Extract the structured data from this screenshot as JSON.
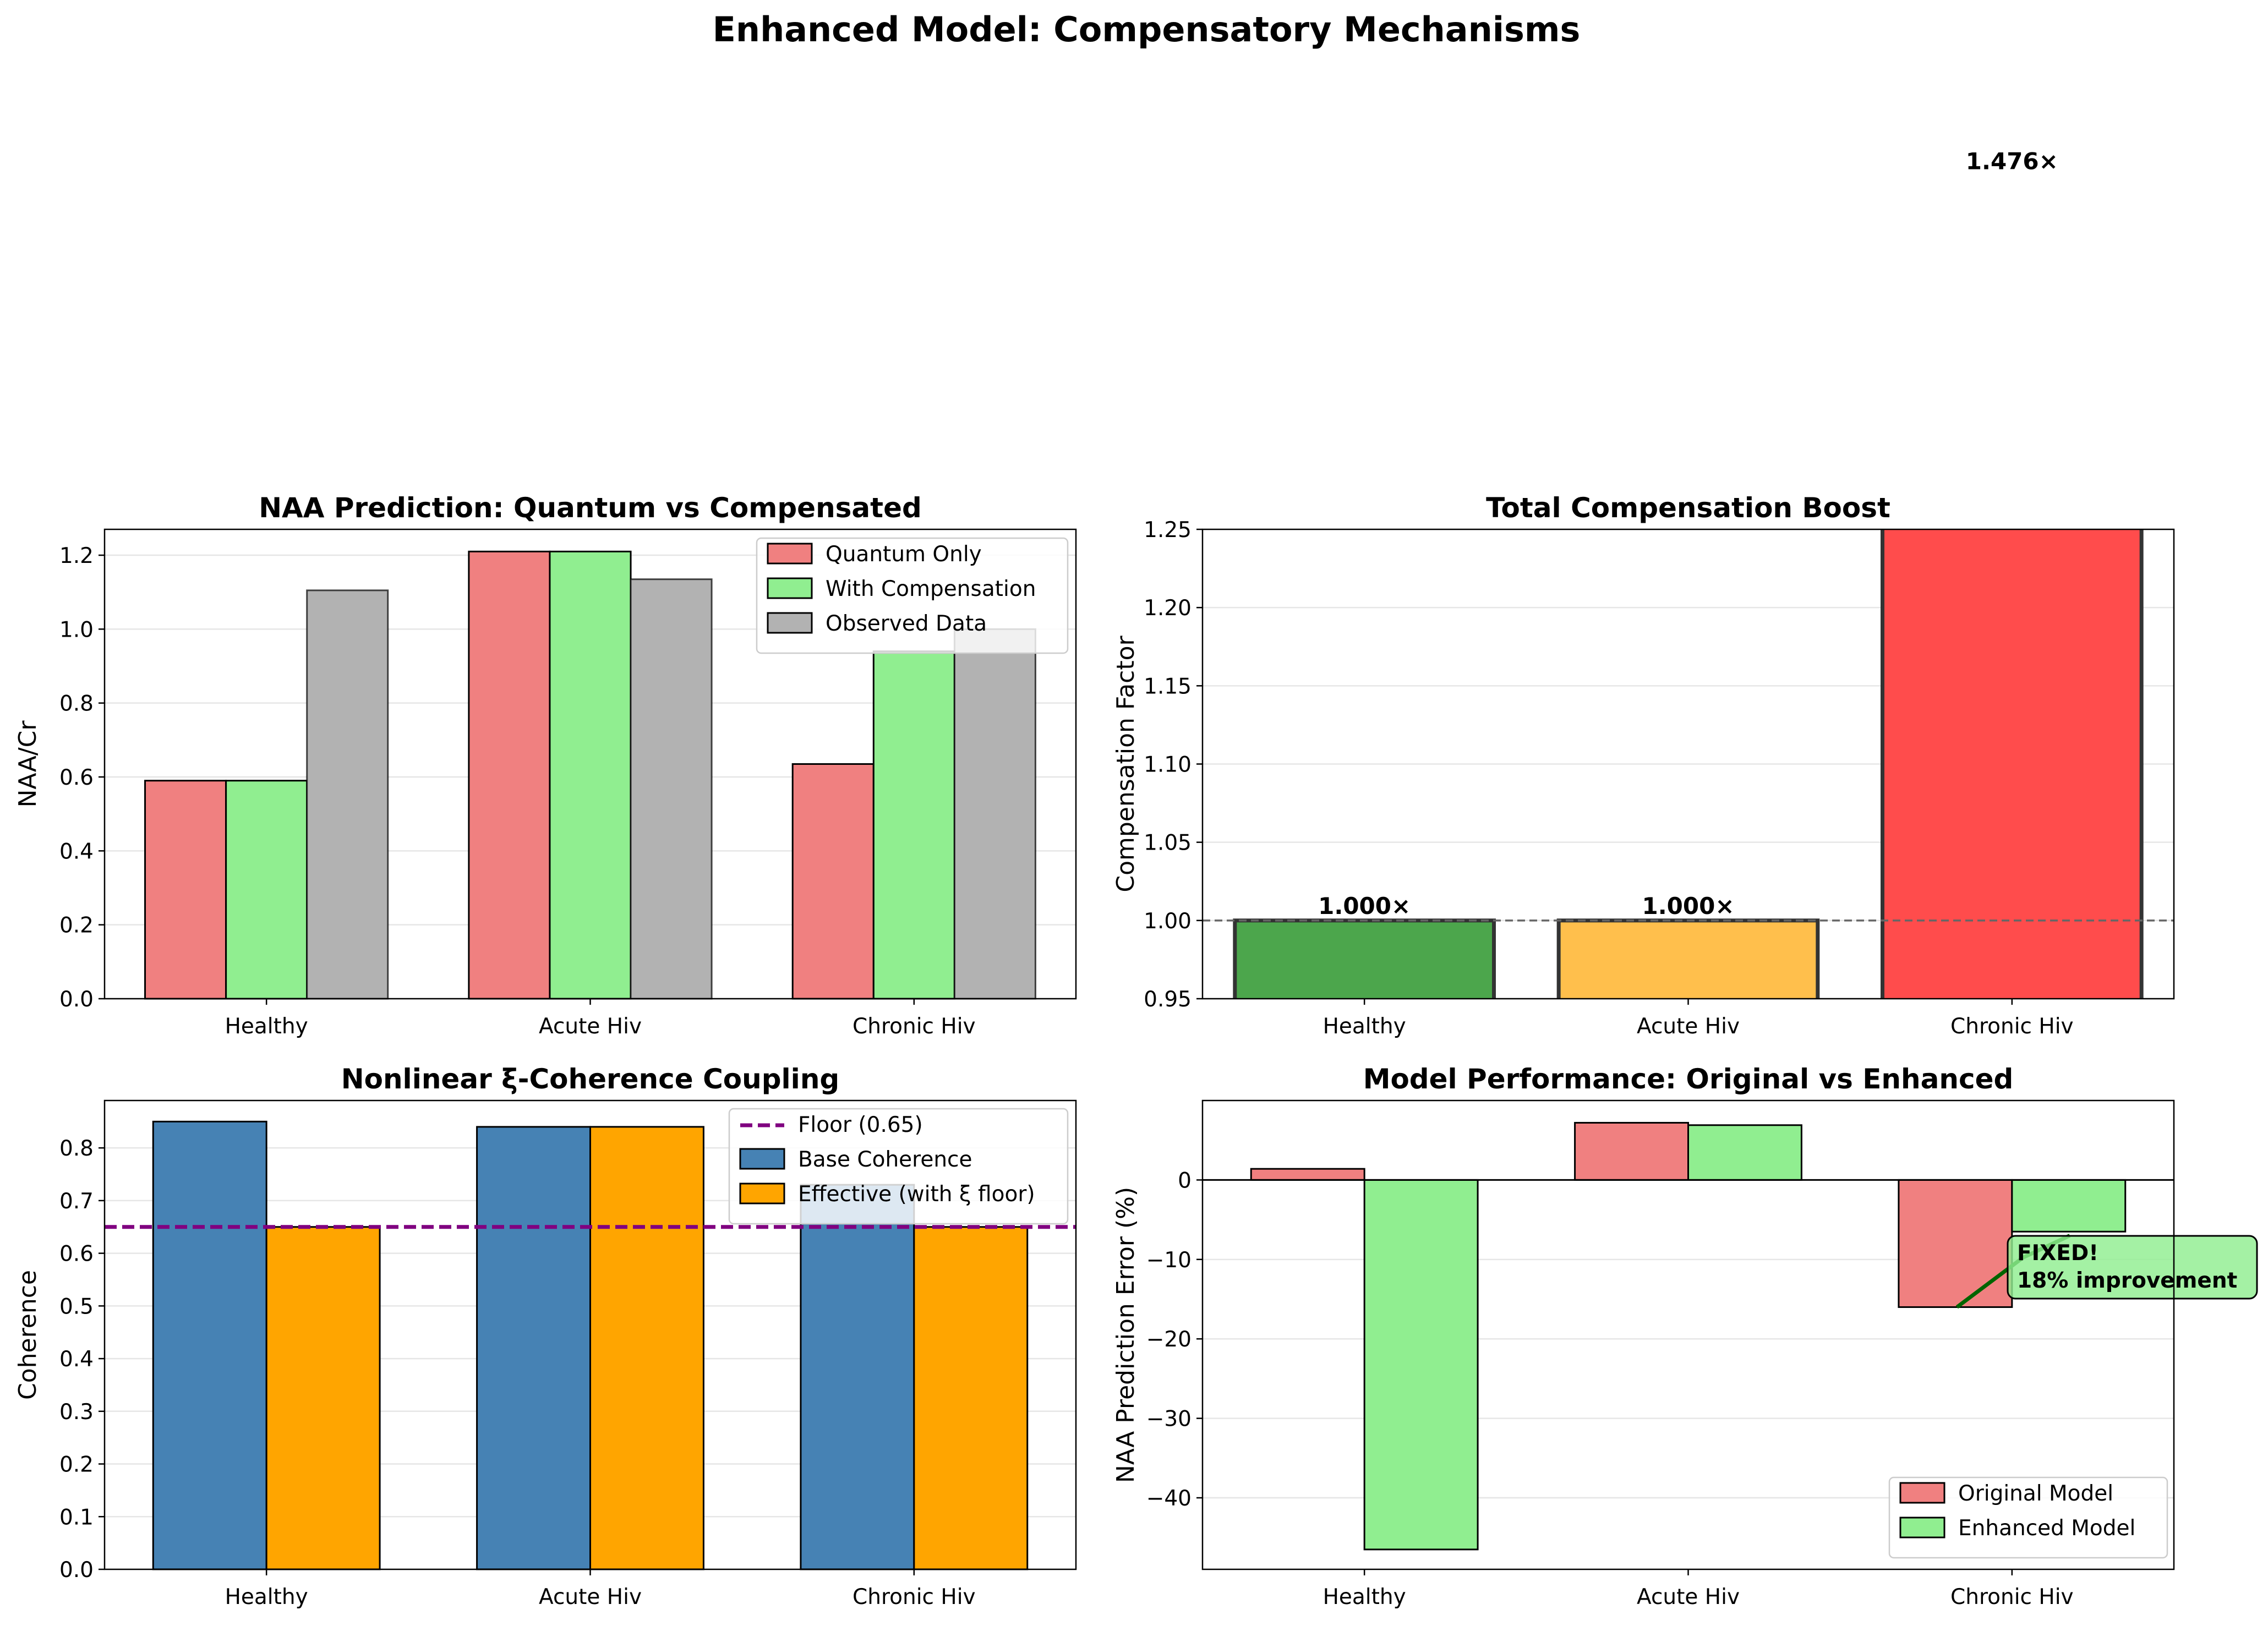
{
  "figure": {
    "suptitle": "Enhanced Model: Compensatory Mechanisms"
  },
  "chart_data": [
    {
      "id": "naa",
      "type": "bar",
      "title": "NAA Prediction: Quantum vs Compensated",
      "xlabel": "",
      "ylabel": "NAA/Cr",
      "categories": [
        "Healthy",
        "Acute Hiv",
        "Chronic Hiv"
      ],
      "ylim": [
        0,
        1.27
      ],
      "yticks": [
        0.0,
        0.2,
        0.4,
        0.6,
        0.8,
        1.0,
        1.2
      ],
      "yticklabels": [
        "0.0",
        "0.2",
        "0.4",
        "0.6",
        "0.8",
        "1.0",
        "1.2"
      ],
      "grid": true,
      "legend": "upper right",
      "series": [
        {
          "name": "Quantum Only",
          "color": "#f08080",
          "values": [
            0.59,
            1.21,
            0.635
          ]
        },
        {
          "name": "With Compensation",
          "color": "#90ee90",
          "values": [
            0.59,
            1.21,
            0.94
          ]
        },
        {
          "name": "Observed Data",
          "color": "#b2b2b2",
          "values": [
            1.105,
            1.135,
            1.0
          ]
        }
      ]
    },
    {
      "id": "boost",
      "type": "bar",
      "title": "Total Compensation Boost",
      "xlabel": "",
      "ylabel": "Compensation Factor",
      "categories": [
        "Healthy",
        "Acute Hiv",
        "Chronic Hiv"
      ],
      "ylim": [
        0.95,
        1.25
      ],
      "yticks": [
        0.95,
        1.0,
        1.05,
        1.1,
        1.15,
        1.2,
        1.25
      ],
      "yticklabels": [
        "0.95",
        "1.00",
        "1.05",
        "1.10",
        "1.15",
        "1.20",
        "1.25"
      ],
      "grid": true,
      "reference_line": 1.0,
      "values": [
        1.0,
        1.0,
        1.476
      ],
      "colors": [
        "#4ca64c",
        "#ffbf4c",
        "#ff4c4c"
      ],
      "value_labels": [
        "1.000×",
        "1.000×",
        "1.476×"
      ]
    },
    {
      "id": "coherence",
      "type": "bar",
      "title": "Nonlinear ξ-Coherence Coupling",
      "xlabel": "",
      "ylabel": "Coherence",
      "categories": [
        "Healthy",
        "Acute Hiv",
        "Chronic Hiv"
      ],
      "ylim": [
        0,
        0.89
      ],
      "yticks": [
        0.0,
        0.1,
        0.2,
        0.3,
        0.4,
        0.5,
        0.6,
        0.7,
        0.8
      ],
      "yticklabels": [
        "0.0",
        "0.1",
        "0.2",
        "0.3",
        "0.4",
        "0.5",
        "0.6",
        "0.7",
        "0.8"
      ],
      "grid": true,
      "legend": "upper right",
      "floor": {
        "name": "Floor (0.65)",
        "value": 0.65,
        "color": "#800080"
      },
      "series": [
        {
          "name": "Base Coherence",
          "color": "#4682b4",
          "values": [
            0.85,
            0.84,
            0.73
          ]
        },
        {
          "name": "Effective (with ξ floor)",
          "color": "#ffa500",
          "values": [
            0.65,
            0.84,
            0.65
          ]
        }
      ]
    },
    {
      "id": "performance",
      "type": "bar",
      "title": "Model Performance: Original vs Enhanced",
      "xlabel": "",
      "ylabel": "NAA Prediction Error (%)",
      "categories": [
        "Healthy",
        "Acute Hiv",
        "Chronic Hiv"
      ],
      "ylim": [
        -49,
        10
      ],
      "yticks": [
        -40,
        -30,
        -20,
        -10,
        0
      ],
      "yticklabels": [
        "−40",
        "−30",
        "−20",
        "−10",
        "0"
      ],
      "grid": true,
      "legend": "lower right",
      "zero_line": true,
      "series": [
        {
          "name": "Original Model",
          "color": "#f08080",
          "values": [
            1.4,
            7.2,
            -16.0
          ]
        },
        {
          "name": "Enhanced Model",
          "color": "#90ee90",
          "values": [
            -46.5,
            6.9,
            -6.5
          ]
        }
      ],
      "annotation": {
        "text": "FIXED!",
        "text2": "18% improvement",
        "box_color": "#90ee90",
        "arrow_color": "#006400"
      }
    }
  ]
}
